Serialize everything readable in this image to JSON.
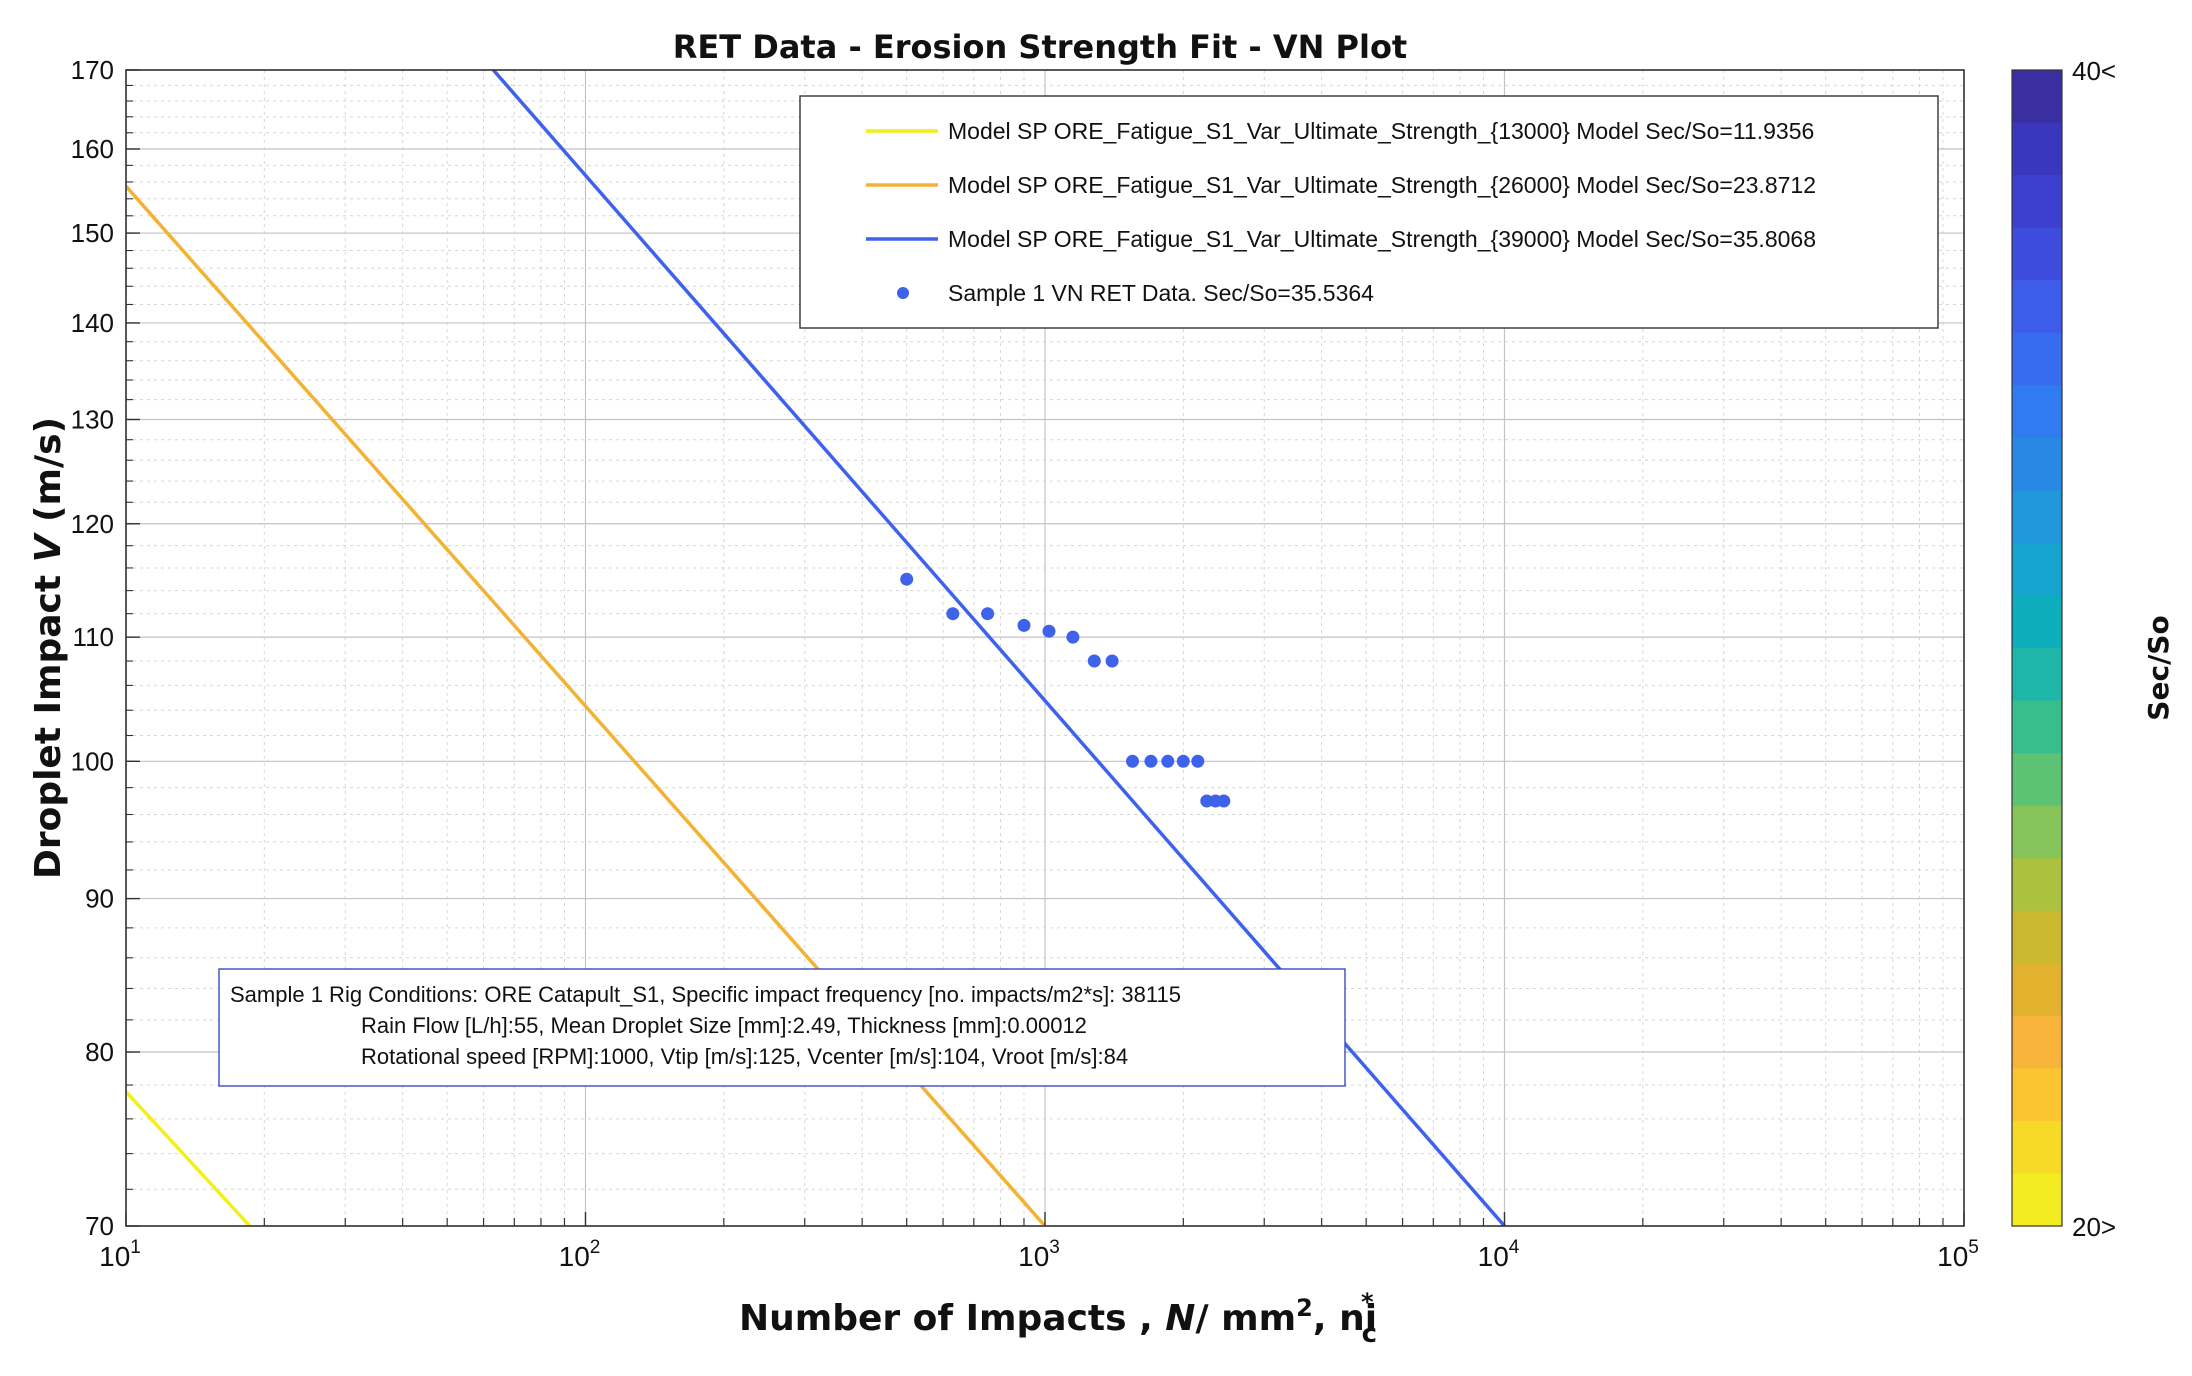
{
  "chart_data": {
    "type": "line",
    "title": "RET Data - Erosion Strength Fit - VN Plot",
    "xlabel": {
      "prefix": "Number of Impacts , ",
      "var": "N",
      "unit": "/ mm",
      "unit_sup": "2",
      "suffix": ", ni",
      "suffix_sup": "*",
      "suffix_sub": "c"
    },
    "ylabel": {
      "prefix": "Droplet Impact ",
      "var": "V",
      "suffix": " (m/s)"
    },
    "x_scale": "log",
    "y_scale": "log",
    "xlim": [
      10,
      100000
    ],
    "ylim": [
      70,
      170
    ],
    "x_ticks": [
      {
        "value": 10,
        "base": "10",
        "exp": "1"
      },
      {
        "value": 100,
        "base": "10",
        "exp": "2"
      },
      {
        "value": 1000,
        "base": "10",
        "exp": "3"
      },
      {
        "value": 10000,
        "base": "10",
        "exp": "4"
      },
      {
        "value": 100000,
        "base": "10",
        "exp": "5"
      }
    ],
    "y_ticks": [
      {
        "value": 70,
        "label": "70"
      },
      {
        "value": 80,
        "label": "80"
      },
      {
        "value": 90,
        "label": "90"
      },
      {
        "value": 100,
        "label": "100"
      },
      {
        "value": 110,
        "label": "110"
      },
      {
        "value": 120,
        "label": "120"
      },
      {
        "value": 130,
        "label": "130"
      },
      {
        "value": 140,
        "label": "140"
      },
      {
        "value": 150,
        "label": "150"
      },
      {
        "value": 160,
        "label": "160"
      },
      {
        "value": 170,
        "label": "170"
      }
    ],
    "grid": true,
    "legend_position": "top-right",
    "series": [
      {
        "name": "Model SP ORE_Fatigue_S1_Var_Ultimate_Strength_{13000} Model Sec/So=11.9356",
        "kind": "line",
        "color": "#f2ef1c",
        "x": [
          10,
          18.6
        ],
        "y": [
          77.6,
          70
        ]
      },
      {
        "name": "Model SP ORE_Fatigue_S1_Var_Ultimate_Strength_{26000} Model Sec/So=23.8712",
        "kind": "line",
        "color": "#f3b233",
        "x": [
          10,
          1000
        ],
        "y": [
          155.5,
          70
        ]
      },
      {
        "name": "Model SP ORE_Fatigue_S1_Var_Ultimate_Strength_{39000} Model Sec/So=35.8068",
        "kind": "line",
        "color": "#3f62ea",
        "x": [
          63,
          10000
        ],
        "y": [
          170,
          70
        ]
      },
      {
        "name": "Sample 1 VN RET Data. Sec/So=35.5364",
        "kind": "scatter",
        "color": "#3f62ea",
        "x": [
          500,
          630,
          750,
          900,
          1020,
          1150,
          1280,
          1400,
          1550,
          1700,
          1850,
          2000,
          2150,
          2250,
          2350,
          2450
        ],
        "y": [
          115,
          112,
          112,
          111,
          110.5,
          110,
          108,
          108,
          100,
          100,
          100,
          100,
          100,
          97,
          97,
          97
        ]
      }
    ],
    "annotation_lines": [
      "Sample 1 Rig Conditions: ORE Catapult_S1,  Specific impact frequency [no. impacts/m2*s]: 38115",
      "Rain Flow [L/h]:55, Mean Droplet Size [mm]:2.49, Thickness [mm]:0.00012",
      "Rotational speed [RPM]:1000, Vtip [m/s]:125, Vcenter [m/s]:104, Vroot [m/s]:84"
    ],
    "colorbar": {
      "label": "Sec/So",
      "top_label": "40<",
      "bottom_label": "20>",
      "colors_top_to_bottom": [
        "#3a2fa0",
        "#3a36bd",
        "#3d40cf",
        "#3e4cde",
        "#3d5ce9",
        "#386cef",
        "#2f7bef",
        "#2789e4",
        "#1f97da",
        "#14a4cd",
        "#0caebc",
        "#1eb6a8",
        "#38bd8f",
        "#5cc274",
        "#86c358",
        "#acc13f",
        "#cbba2f",
        "#e2b22f",
        "#f8b33a",
        "#fbc532",
        "#f6da27",
        "#f2ec20"
      ]
    }
  }
}
